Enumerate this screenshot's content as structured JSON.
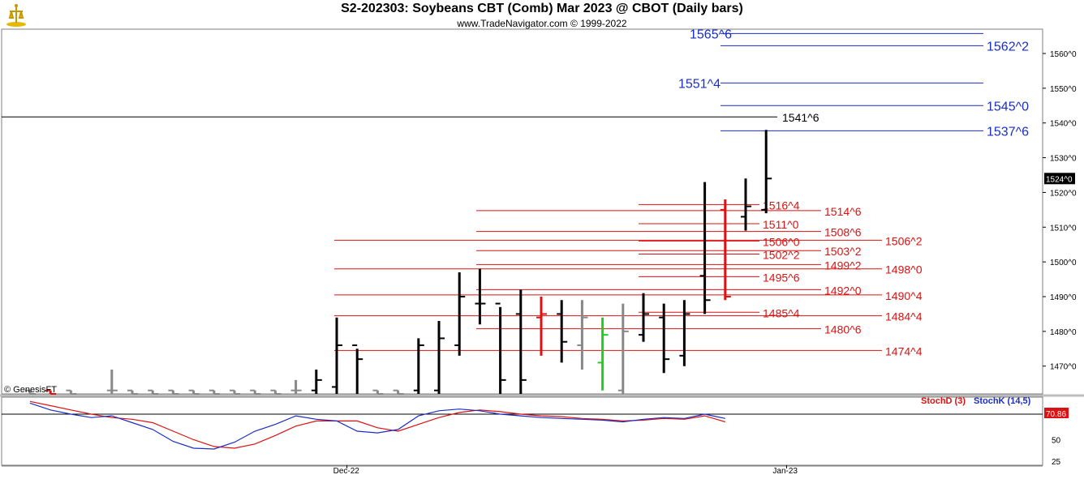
{
  "title": "S2-202303:  Soybeans CBT (Comb) Mar 2023 @ CBOT  (Daily bars)",
  "subtitle": "www.TradeNavigator.com © 1999-2022",
  "watermark": "© GenesisFT",
  "colors": {
    "blue_level": "#1b2ec4",
    "red_level": "#dd1111",
    "black": "#000000",
    "stoch_d": "#dd1111",
    "stoch_k": "#1b2ec4",
    "up_bar": "#22cc22",
    "down_bar": "#dd1111",
    "neutral_bar": "#888888"
  },
  "chart_data": [
    {
      "type": "ohlc",
      "price_axis": {
        "ylim": [
          1462,
          1567
        ],
        "ticks": [
          "1470^0",
          "1480^0",
          "1490^0",
          "1500^0",
          "1510^0",
          "1520^0",
          "1530^0",
          "1540^0",
          "1550^0",
          "1560^0"
        ],
        "tick_values": [
          1470,
          1480,
          1490,
          1500,
          1510,
          1520,
          1530,
          1540,
          1550,
          1560
        ],
        "last_price_label": "1524^0",
        "last_price": 1524
      },
      "x_labels": [
        {
          "label": "Dec-22",
          "bar_index": 15.5
        },
        {
          "label": "Jan-23",
          "bar_index": 37.0
        }
      ],
      "bars": [
        {
          "o": 1463,
          "h": 1463,
          "l": 1462,
          "c": 1462,
          "color": "neutral"
        },
        {
          "o": 1463,
          "h": 1463,
          "l": 1462,
          "c": 1462,
          "color": "down"
        },
        {
          "o": 1463,
          "h": 1463,
          "l": 1462,
          "c": 1462,
          "color": "neutral"
        },
        {
          "o": 1463,
          "h": 1462,
          "l": 1462,
          "c": 1462,
          "color": "neutral"
        },
        {
          "o": 1463,
          "h": 1469,
          "l": 1462,
          "c": 1463,
          "color": "neutral"
        },
        {
          "o": 1463,
          "h": 1463,
          "l": 1462,
          "c": 1462,
          "color": "neutral"
        },
        {
          "o": 1463,
          "h": 1463,
          "l": 1462,
          "c": 1462,
          "color": "neutral"
        },
        {
          "o": 1463,
          "h": 1463,
          "l": 1462,
          "c": 1462,
          "color": "neutral"
        },
        {
          "o": 1463,
          "h": 1463,
          "l": 1462,
          "c": 1462,
          "color": "neutral"
        },
        {
          "o": 1463,
          "h": 1463,
          "l": 1462,
          "c": 1462,
          "color": "neutral"
        },
        {
          "o": 1463,
          "h": 1463,
          "l": 1462,
          "c": 1462,
          "color": "neutral"
        },
        {
          "o": 1463,
          "h": 1463,
          "l": 1462,
          "c": 1462,
          "color": "neutral"
        },
        {
          "o": 1463,
          "h": 1463,
          "l": 1462,
          "c": 1462,
          "color": "neutral"
        },
        {
          "o": 1463,
          "h": 1466,
          "l": 1462,
          "c": 1463,
          "color": "neutral"
        },
        {
          "o": 1463,
          "h": 1469,
          "l": 1462,
          "c": 1466,
          "color": "black"
        },
        {
          "o": 1464,
          "h": 1484,
          "l": 1462,
          "c": 1476,
          "color": "black"
        },
        {
          "o": 1476,
          "h": 1475,
          "l": 1462,
          "c": 1472,
          "color": "black"
        },
        {
          "o": 1463,
          "h": 1463,
          "l": 1462,
          "c": 1462,
          "color": "neutral"
        },
        {
          "o": 1463,
          "h": 1463,
          "l": 1462,
          "c": 1462,
          "color": "neutral"
        },
        {
          "o": 1463,
          "h": 1478,
          "l": 1462,
          "c": 1476,
          "color": "black"
        },
        {
          "o": 1463,
          "h": 1483,
          "l": 1462,
          "c": 1478,
          "color": "black"
        },
        {
          "o": 1476,
          "h": 1497,
          "l": 1473,
          "c": 1490,
          "color": "black"
        },
        {
          "o": 1488,
          "h": 1498,
          "l": 1482,
          "c": 1488,
          "color": "black"
        },
        {
          "o": 1488,
          "h": 1487,
          "l": 1462,
          "c": 1466,
          "color": "black"
        },
        {
          "o": 1485,
          "h": 1492,
          "l": 1462,
          "c": 1466,
          "color": "black"
        },
        {
          "o": 1484,
          "h": 1490,
          "l": 1473,
          "c": 1485,
          "color": "down"
        },
        {
          "o": 1485,
          "h": 1489,
          "l": 1471,
          "c": 1477,
          "color": "black"
        },
        {
          "o": 1476,
          "h": 1489,
          "l": 1469,
          "c": 1484,
          "color": "neutral"
        },
        {
          "o": 1471,
          "h": 1484,
          "l": 1463,
          "c": 1479,
          "color": "up"
        },
        {
          "o": 1463,
          "h": 1488,
          "l": 1462,
          "c": 1480,
          "color": "neutral"
        },
        {
          "o": 1479,
          "h": 1491,
          "l": 1477,
          "c": 1485,
          "color": "black"
        },
        {
          "o": 1484,
          "h": 1488,
          "l": 1468,
          "c": 1472,
          "color": "black"
        },
        {
          "o": 1473,
          "h": 1489,
          "l": 1470,
          "c": 1485,
          "color": "black"
        },
        {
          "o": 1496,
          "h": 1523,
          "l": 1485,
          "c": 1489,
          "color": "black"
        },
        {
          "o": 1515,
          "h": 1518,
          "l": 1489,
          "c": 1490,
          "color": "down"
        },
        {
          "o": 1513,
          "h": 1524,
          "l": 1509,
          "c": 1516,
          "color": "black"
        },
        {
          "o": 1515,
          "h": 1538,
          "l": 1514,
          "c": 1524,
          "color": "black"
        }
      ],
      "levels_blue": [
        {
          "label": "1565^6",
          "value": 1565.75
        },
        {
          "label": "1562^2",
          "value": 1562.25
        },
        {
          "label": "1551^4",
          "value": 1551.5
        },
        {
          "label": "1545^0",
          "value": 1545.0
        },
        {
          "label": "1537^6",
          "value": 1537.75
        }
      ],
      "level_black": {
        "label": "1541^6",
        "value": 1541.75
      },
      "levels_red": [
        {
          "label": "1516^4",
          "value": 1516.5
        },
        {
          "label": "1514^6",
          "value": 1514.75
        },
        {
          "label": "1511^0",
          "value": 1511.0
        },
        {
          "label": "1508^6",
          "value": 1508.75
        },
        {
          "label": "1506^0",
          "value": 1506.0
        },
        {
          "label": "1506^2",
          "value": 1506.25
        },
        {
          "label": "1503^2",
          "value": 1503.25
        },
        {
          "label": "1502^2",
          "value": 1502.25
        },
        {
          "label": "1499^2",
          "value": 1499.25
        },
        {
          "label": "1498^0",
          "value": 1498.0
        },
        {
          "label": "1495^6",
          "value": 1495.75
        },
        {
          "label": "1492^0",
          "value": 1492.0
        },
        {
          "label": "1490^4",
          "value": 1490.5
        },
        {
          "label": "1485^4",
          "value": 1485.5
        },
        {
          "label": "1484^4",
          "value": 1484.5
        },
        {
          "label": "1480^6",
          "value": 1480.75
        },
        {
          "label": "1474^4",
          "value": 1474.5
        }
      ]
    },
    {
      "type": "line",
      "ylim": [
        20,
        100
      ],
      "ticks": [
        25,
        50
      ],
      "last_value_label": "70.86",
      "series": [
        {
          "name": "StochD (3)",
          "values": [
            95,
            90,
            85,
            80,
            76,
            74,
            70,
            60,
            50,
            42,
            40,
            45,
            55,
            66,
            72,
            72,
            72,
            64,
            60,
            68,
            76,
            82,
            85,
            83,
            80,
            78,
            77,
            75,
            74,
            72,
            73,
            75,
            74,
            78,
            71
          ]
        },
        {
          "name": "StochK (14,5)",
          "values": [
            93,
            85,
            80,
            76,
            78,
            70,
            62,
            48,
            40,
            39,
            47,
            60,
            68,
            78,
            74,
            72,
            60,
            58,
            62,
            78,
            84,
            86,
            84,
            80,
            78,
            76,
            75,
            74,
            73,
            71,
            74,
            76,
            75,
            80,
            75
          ]
        }
      ]
    }
  ]
}
